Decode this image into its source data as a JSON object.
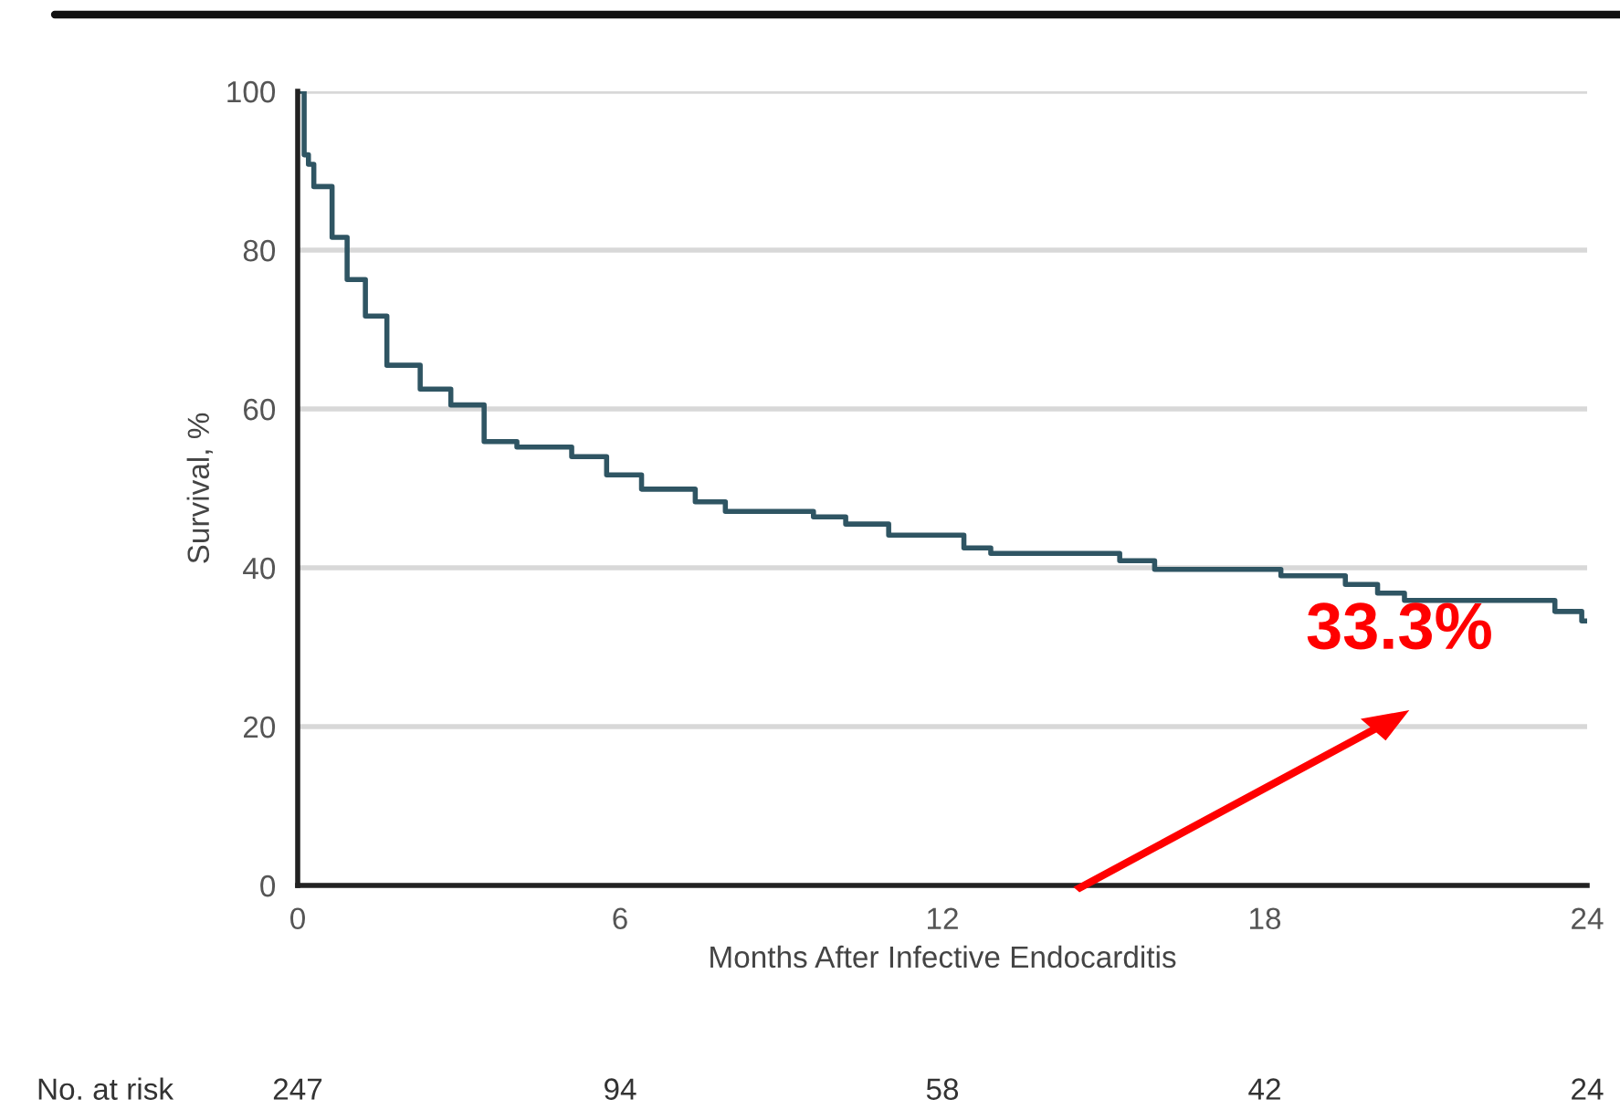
{
  "chart_data": {
    "type": "step",
    "xlabel": "Months After Infective Endocarditis",
    "ylabel": "Survival, %",
    "xlim": [
      0,
      24
    ],
    "ylim": [
      0,
      100
    ],
    "xticks": [
      0,
      6,
      12,
      18,
      24
    ],
    "yticks": [
      0,
      20,
      40,
      60,
      80,
      100
    ],
    "grid": "y",
    "legend": false,
    "marker": "none",
    "line_style": "solid",
    "series": [
      {
        "color": "#2f5563",
        "x": [
          0,
          0.12,
          0.2,
          0.3,
          0.64,
          0.92,
          1.26,
          1.66,
          2.28,
          2.85,
          3.47,
          4.08,
          5.1,
          5.75,
          6.4,
          7.4,
          7.96,
          9.6,
          10.2,
          11,
          12.4,
          12.9,
          15.3,
          15.95,
          18.3,
          19.5,
          20.1,
          20.6,
          23.4,
          23.9,
          24
        ],
        "values": [
          100,
          92,
          90.8,
          88,
          81.6,
          76.3,
          71.7,
          65.5,
          62.5,
          60.5,
          55.9,
          55.2,
          54,
          51.7,
          49.9,
          48.3,
          47.1,
          46.4,
          45.5,
          44.1,
          42.5,
          41.8,
          40.9,
          39.8,
          39,
          37.9,
          36.8,
          35.9,
          34.5,
          33.3,
          33.3
        ]
      }
    ],
    "annotations": [
      "33.3%",
      "No. at risk",
      "247",
      "94",
      "58",
      "42",
      "24"
    ]
  }
}
